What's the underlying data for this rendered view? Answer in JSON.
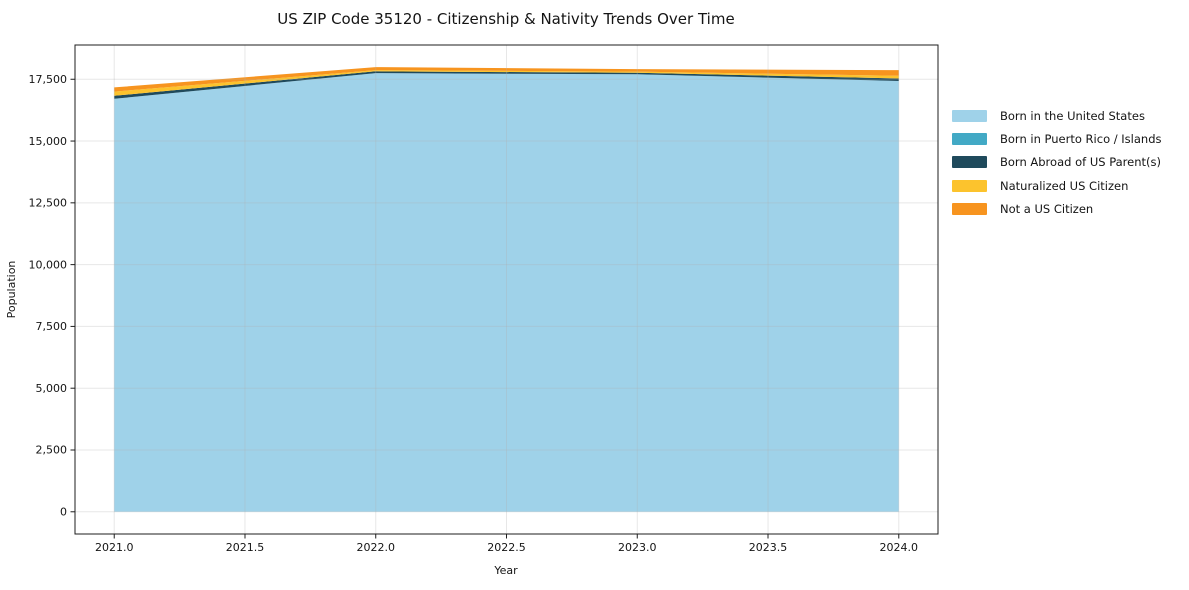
{
  "chart_data": {
    "type": "area",
    "stacked": true,
    "title": "US ZIP Code 35120 - Citizenship & Nativity Trends Over Time",
    "xlabel": "Year",
    "ylabel": "Population",
    "x": [
      2021,
      2022,
      2023,
      2024
    ],
    "series": [
      {
        "name": "Born in the United States",
        "color": "#9fd2e9",
        "values": [
          16710,
          17750,
          17700,
          17430
        ]
      },
      {
        "name": "Born in Puerto Rico / Islands",
        "color": "#42a9c5",
        "values": [
          0,
          0,
          0,
          0
        ]
      },
      {
        "name": "Born Abroad of US Parent(s)",
        "color": "#1f4a5c",
        "values": [
          120,
          70,
          60,
          100
        ]
      },
      {
        "name": "Naturalized US Citizen",
        "color": "#fcc32d",
        "values": [
          170,
          50,
          50,
          110
        ]
      },
      {
        "name": "Not a US Citizen",
        "color": "#f7941f",
        "values": [
          170,
          120,
          100,
          230
        ]
      }
    ],
    "stack_totals": [
      17170,
      17990,
      17910,
      17870
    ],
    "xlim": [
      2020.85,
      2024.15
    ],
    "ylim": [
      -899,
      18886
    ],
    "xticks": {
      "values": [
        2021,
        2021.5,
        2022,
        2022.5,
        2023,
        2023.5,
        2024
      ],
      "labels": [
        "2021.0",
        "2021.5",
        "2022.0",
        "2022.5",
        "2023.0",
        "2023.5",
        "2024.0"
      ]
    },
    "yticks": {
      "values": [
        0,
        2500,
        5000,
        7500,
        10000,
        12500,
        15000,
        17500
      ],
      "labels": [
        "0",
        "2,500",
        "5,000",
        "7,500",
        "10,000",
        "12,500",
        "15,000",
        "17,500"
      ]
    },
    "grid": true,
    "legend_position": "right-outside",
    "legend_frame": false
  },
  "colors": {
    "background": "#ffffff",
    "spine": "#1c1c1c",
    "grid": "#b0b0b0",
    "text": "#141414"
  }
}
